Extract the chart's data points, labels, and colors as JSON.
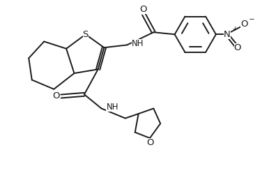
{
  "background_color": "#ffffff",
  "line_color": "#1a1a1a",
  "line_width": 1.4,
  "font_size": 8.5,
  "figsize": [
    3.86,
    2.48
  ],
  "dpi": 100,
  "xlim": [
    0,
    10
  ],
  "ylim": [
    0,
    6.5
  ]
}
